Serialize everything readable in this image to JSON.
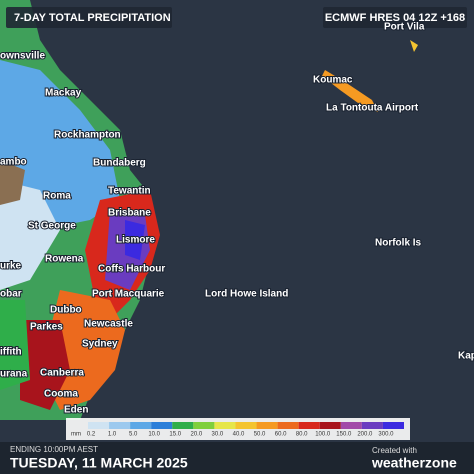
{
  "header": {
    "title": "7-DAY TOTAL PRECIPITATION",
    "model": "ECMWF HRES 04 12Z +168"
  },
  "places": [
    "ownsville",
    "Mackay",
    "Rockhampton",
    "ambo",
    "Bundaberg",
    "Tewantin",
    "Roma",
    "Brisbane",
    "St George",
    "Lismore",
    "Rowena",
    "Coffs Harbour",
    "urke",
    "obar",
    "Dubbo",
    "Port Macquarie",
    "Parkes",
    "Newcastle",
    "Sydney",
    "iffith",
    "urana",
    "Canberra",
    "Cooma",
    "Eden",
    "Lord Howe Island",
    "Norfolk Is",
    "Koumac",
    "La Tontouta Airport",
    "Port Vila",
    "Kape"
  ],
  "legend": {
    "unit": "mm",
    "entries": [
      {
        "label": "0.2",
        "color": "#cfe3f2"
      },
      {
        "label": "1.0",
        "color": "#9cc9ee"
      },
      {
        "label": "5.0",
        "color": "#5da8e6"
      },
      {
        "label": "10.0",
        "color": "#2c7fd9"
      },
      {
        "label": "15.0",
        "color": "#2fae4a"
      },
      {
        "label": "20.0",
        "color": "#7fcf3c"
      },
      {
        "label": "30.0",
        "color": "#e6e64a"
      },
      {
        "label": "40.0",
        "color": "#f4c430"
      },
      {
        "label": "50.0",
        "color": "#f59a22"
      },
      {
        "label": "60.0",
        "color": "#ec6a1e"
      },
      {
        "label": "80.0",
        "color": "#d8281c"
      },
      {
        "label": "100.0",
        "color": "#a8141c"
      },
      {
        "label": "150.0",
        "color": "#a24aa8"
      },
      {
        "label": "200.0",
        "color": "#6a3cc0"
      },
      {
        "label": "300.0",
        "color": "#3b2ae0"
      }
    ]
  },
  "footer": {
    "ending": "ENDING 10:00PM AEST",
    "date": "TUESDAY, 11 MARCH 2025",
    "created": "Created with",
    "brand": "weatherzone"
  }
}
